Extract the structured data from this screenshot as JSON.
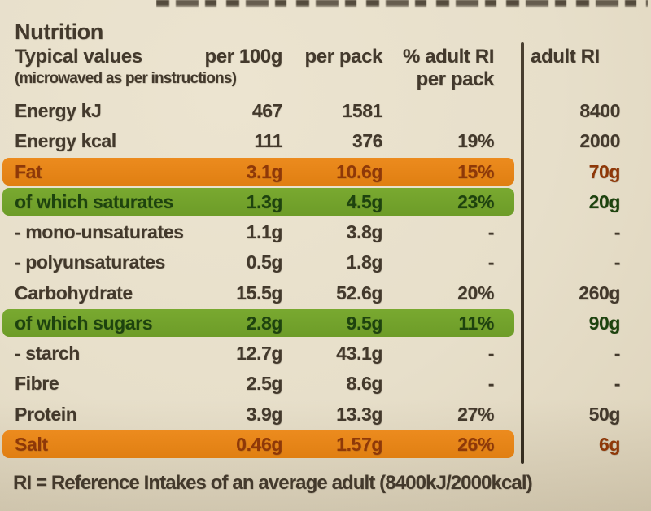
{
  "title": "Nutrition",
  "table": {
    "header": {
      "label": "Typical values",
      "label_sub": "(microwaved as per instructions)",
      "per100g": "per 100g",
      "perpack": "per pack",
      "ri_line1": "% adult RI",
      "ri_line2": "per pack",
      "adult_ri": "adult RI"
    },
    "rows": [
      {
        "label": "Energy kJ",
        "per100g": "467",
        "perpack": "1581",
        "ri_pct": "",
        "adult_ri": "8400",
        "highlight": "none"
      },
      {
        "label": "Energy kcal",
        "per100g": "111",
        "perpack": "376",
        "ri_pct": "19%",
        "adult_ri": "2000",
        "highlight": "none"
      },
      {
        "label": "Fat",
        "per100g": "3.1g",
        "perpack": "10.6g",
        "ri_pct": "15%",
        "adult_ri": "70g",
        "highlight": "orange"
      },
      {
        "label": "of which saturates",
        "per100g": "1.3g",
        "perpack": "4.5g",
        "ri_pct": "23%",
        "adult_ri": "20g",
        "highlight": "green"
      },
      {
        "label": "- mono-unsaturates",
        "per100g": "1.1g",
        "perpack": "3.8g",
        "ri_pct": "-",
        "adult_ri": "-",
        "highlight": "none"
      },
      {
        "label": "- polyunsaturates",
        "per100g": "0.5g",
        "perpack": "1.8g",
        "ri_pct": "-",
        "adult_ri": "-",
        "highlight": "none"
      },
      {
        "label": "Carbohydrate",
        "per100g": "15.5g",
        "perpack": "52.6g",
        "ri_pct": "20%",
        "adult_ri": "260g",
        "highlight": "none"
      },
      {
        "label": "of which sugars",
        "per100g": "2.8g",
        "perpack": "9.5g",
        "ri_pct": "11%",
        "adult_ri": "90g",
        "highlight": "green"
      },
      {
        "label": "- starch",
        "per100g": "12.7g",
        "perpack": "43.1g",
        "ri_pct": "-",
        "adult_ri": "-",
        "highlight": "none"
      },
      {
        "label": "Fibre",
        "per100g": "2.5g",
        "perpack": "8.6g",
        "ri_pct": "-",
        "adult_ri": "-",
        "highlight": "none"
      },
      {
        "label": "Protein",
        "per100g": "3.9g",
        "perpack": "13.3g",
        "ri_pct": "27%",
        "adult_ri": "50g",
        "highlight": "none"
      },
      {
        "label": "Salt",
        "per100g": "0.46g",
        "perpack": "1.57g",
        "ri_pct": "26%",
        "adult_ri": "6g",
        "highlight": "orange"
      }
    ],
    "footnote": "RI = Reference Intakes of an average adult (8400kJ/2000kcal)"
  },
  "colors": {
    "background": "#e7dfca",
    "ink": "#43392c",
    "orange": "#ec8b1e",
    "orange_ink": "#8f3808",
    "green": "#79a930",
    "green_ink": "#1d430e"
  }
}
